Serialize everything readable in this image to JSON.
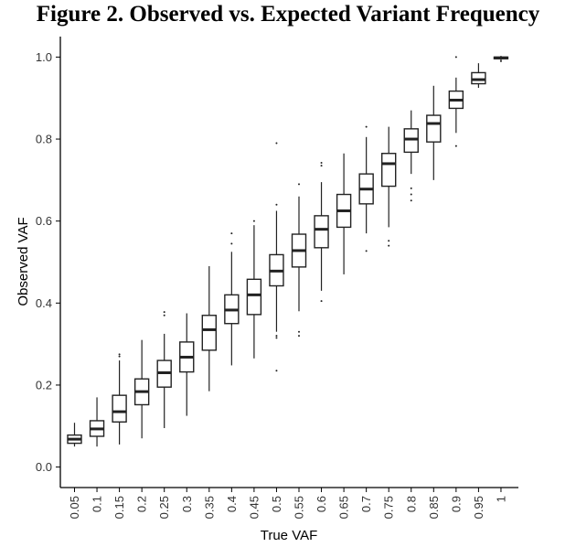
{
  "chart_data": {
    "type": "box",
    "title": "Figure 2. Observed vs. Expected Variant Frequency",
    "xlabel": "True VAF",
    "ylabel": "Observed VAF",
    "ylim": [
      -0.05,
      1.05
    ],
    "y_ticks": [
      0.0,
      0.2,
      0.4,
      0.6,
      0.8,
      1.0
    ],
    "y_tick_labels": [
      "0.0",
      "0.2",
      "0.4",
      "0.6",
      "0.8",
      "1.0"
    ],
    "grid": false,
    "categories": [
      "0.05",
      "0.1",
      "0.15",
      "0.2",
      "0.25",
      "0.3",
      "0.35",
      "0.4",
      "0.45",
      "0.5",
      "0.55",
      "0.6",
      "0.65",
      "0.7",
      "0.75",
      "0.8",
      "0.85",
      "0.9",
      "0.95",
      "1"
    ],
    "boxes": [
      {
        "category": "0.05",
        "whisker_low": 0.05,
        "q1": 0.058,
        "median": 0.068,
        "q3": 0.078,
        "whisker_high": 0.108,
        "outliers": []
      },
      {
        "category": "0.1",
        "whisker_low": 0.05,
        "q1": 0.075,
        "median": 0.093,
        "q3": 0.113,
        "whisker_high": 0.17,
        "outliers": []
      },
      {
        "category": "0.15",
        "whisker_low": 0.055,
        "q1": 0.11,
        "median": 0.135,
        "q3": 0.175,
        "whisker_high": 0.26,
        "outliers": [
          0.27,
          0.275
        ]
      },
      {
        "category": "0.2",
        "whisker_low": 0.07,
        "q1": 0.152,
        "median": 0.184,
        "q3": 0.215,
        "whisker_high": 0.31,
        "outliers": []
      },
      {
        "category": "0.25",
        "whisker_low": 0.095,
        "q1": 0.195,
        "median": 0.23,
        "q3": 0.26,
        "whisker_high": 0.325,
        "outliers": [
          0.37,
          0.378
        ]
      },
      {
        "category": "0.3",
        "whisker_low": 0.125,
        "q1": 0.232,
        "median": 0.268,
        "q3": 0.305,
        "whisker_high": 0.375,
        "outliers": []
      },
      {
        "category": "0.35",
        "whisker_low": 0.185,
        "q1": 0.285,
        "median": 0.335,
        "q3": 0.37,
        "whisker_high": 0.49,
        "outliers": []
      },
      {
        "category": "0.4",
        "whisker_low": 0.248,
        "q1": 0.35,
        "median": 0.383,
        "q3": 0.42,
        "whisker_high": 0.525,
        "outliers": [
          0.545,
          0.57
        ]
      },
      {
        "category": "0.45",
        "whisker_low": 0.265,
        "q1": 0.372,
        "median": 0.42,
        "q3": 0.458,
        "whisker_high": 0.59,
        "outliers": [
          0.6
        ]
      },
      {
        "category": "0.5",
        "whisker_low": 0.33,
        "q1": 0.442,
        "median": 0.478,
        "q3": 0.518,
        "whisker_high": 0.625,
        "outliers": [
          0.235,
          0.315,
          0.32,
          0.64,
          0.79
        ]
      },
      {
        "category": "0.55",
        "whisker_low": 0.38,
        "q1": 0.488,
        "median": 0.528,
        "q3": 0.568,
        "whisker_high": 0.66,
        "outliers": [
          0.32,
          0.33,
          0.69
        ]
      },
      {
        "category": "0.6",
        "whisker_low": 0.43,
        "q1": 0.535,
        "median": 0.58,
        "q3": 0.613,
        "whisker_high": 0.695,
        "outliers": [
          0.405,
          0.735,
          0.742
        ]
      },
      {
        "category": "0.65",
        "whisker_low": 0.47,
        "q1": 0.585,
        "median": 0.625,
        "q3": 0.665,
        "whisker_high": 0.765,
        "outliers": []
      },
      {
        "category": "0.7",
        "whisker_low": 0.57,
        "q1": 0.642,
        "median": 0.678,
        "q3": 0.715,
        "whisker_high": 0.805,
        "outliers": [
          0.527,
          0.83
        ]
      },
      {
        "category": "0.75",
        "whisker_low": 0.585,
        "q1": 0.685,
        "median": 0.74,
        "q3": 0.765,
        "whisker_high": 0.83,
        "outliers": [
          0.54,
          0.552
        ]
      },
      {
        "category": "0.8",
        "whisker_low": 0.715,
        "q1": 0.768,
        "median": 0.8,
        "q3": 0.825,
        "whisker_high": 0.87,
        "outliers": [
          0.65,
          0.665,
          0.68
        ]
      },
      {
        "category": "0.85",
        "whisker_low": 0.7,
        "q1": 0.793,
        "median": 0.838,
        "q3": 0.858,
        "whisker_high": 0.93,
        "outliers": []
      },
      {
        "category": "0.9",
        "whisker_low": 0.815,
        "q1": 0.875,
        "median": 0.895,
        "q3": 0.917,
        "whisker_high": 0.95,
        "outliers": [
          0.783,
          1.0
        ]
      },
      {
        "category": "0.95",
        "whisker_low": 0.925,
        "q1": 0.935,
        "median": 0.945,
        "q3": 0.962,
        "whisker_high": 0.985,
        "outliers": []
      },
      {
        "category": "1",
        "whisker_low": 0.992,
        "q1": 0.996,
        "median": 0.998,
        "q3": 1.0,
        "whisker_high": 1.003,
        "outliers": [
          0.99
        ]
      }
    ]
  }
}
